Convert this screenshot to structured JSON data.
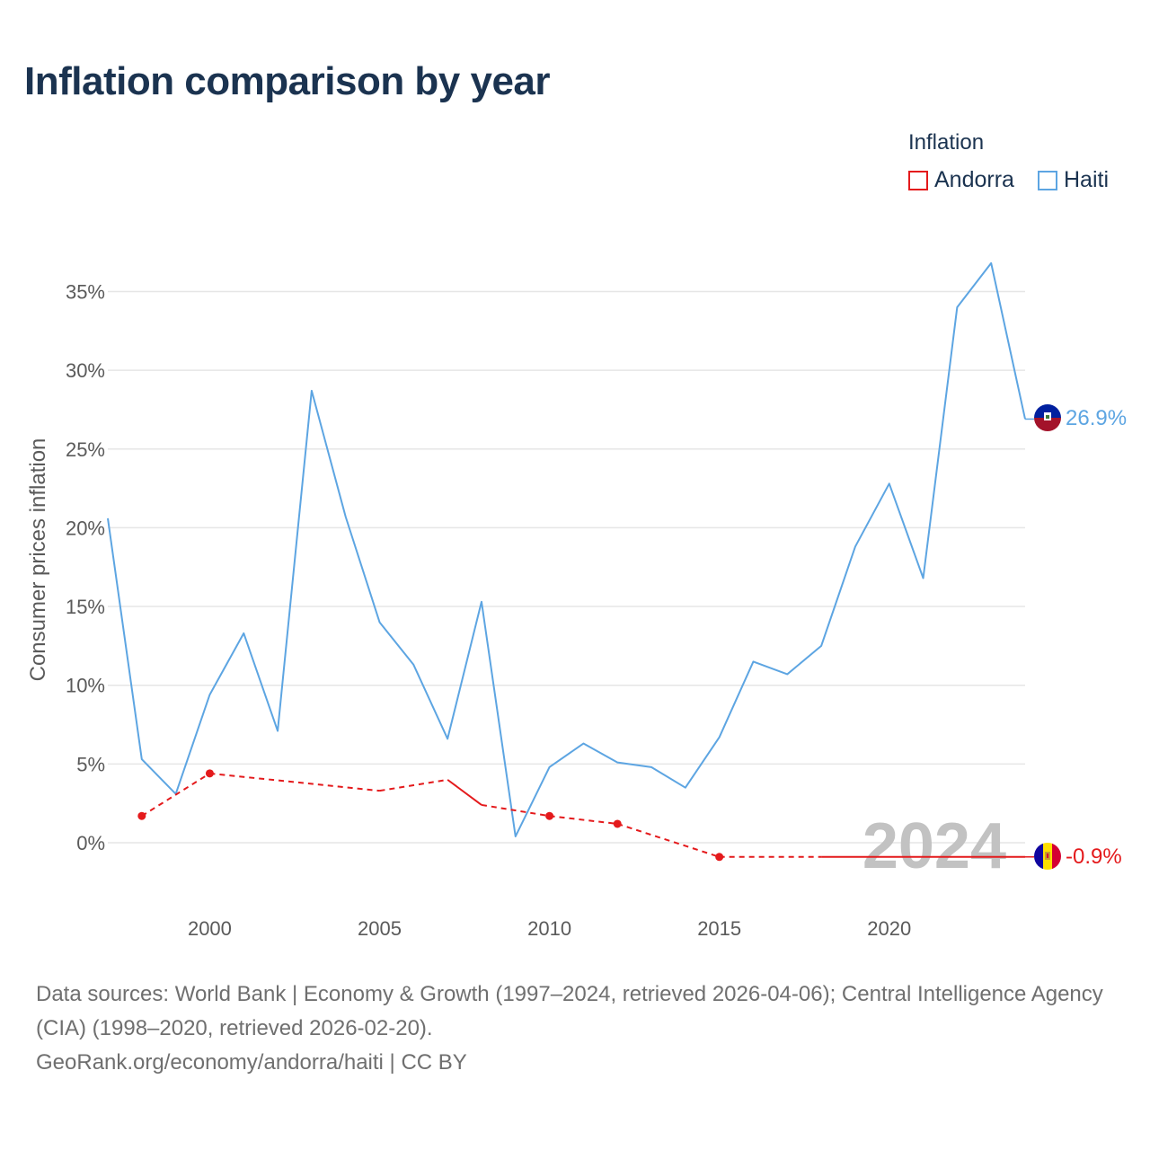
{
  "title": "Inflation comparison by year",
  "legend": {
    "title": "Inflation",
    "items": [
      {
        "label": "Andorra",
        "color": "#e41a1c"
      },
      {
        "label": "Haiti",
        "color": "#5da5e2"
      }
    ]
  },
  "footer": {
    "sources": "Data sources: World Bank | Economy & Growth (1997–2024, retrieved 2026-04-06); Central Intelligence Agency (CIA) (1998–2020, retrieved 2026-02-20).",
    "site": "GeoRank.org/economy/andorra/haiti | CC BY"
  },
  "chart_data": {
    "type": "line",
    "title": "Inflation comparison by year",
    "xlabel": "",
    "ylabel": "Consumer prices inflation",
    "xlim": [
      1997,
      2024
    ],
    "ylim": [
      -3,
      38
    ],
    "x_ticks": [
      2000,
      2005,
      2010,
      2015,
      2020
    ],
    "y_ticks": [
      0,
      5,
      10,
      15,
      20,
      25,
      30,
      35
    ],
    "y_tick_labels": [
      "0%",
      "5%",
      "10%",
      "15%",
      "20%",
      "25%",
      "30%",
      "35%"
    ],
    "grid": true,
    "year_watermark": "2024",
    "series": [
      {
        "name": "Haiti",
        "color": "#5da5e2",
        "end_label": "26.9%",
        "points": [
          [
            1997,
            20.6
          ],
          [
            1998,
            5.3
          ],
          [
            1999,
            3.1
          ],
          [
            2000,
            9.4
          ],
          [
            2001,
            13.3
          ],
          [
            2002,
            7.1
          ],
          [
            2003,
            28.7
          ],
          [
            2004,
            20.7
          ],
          [
            2005,
            14.0
          ],
          [
            2006,
            11.3
          ],
          [
            2007,
            6.6
          ],
          [
            2008,
            15.3
          ],
          [
            2009,
            0.4
          ],
          [
            2010,
            4.8
          ],
          [
            2011,
            6.3
          ],
          [
            2012,
            5.1
          ],
          [
            2013,
            4.8
          ],
          [
            2014,
            3.5
          ],
          [
            2015,
            6.7
          ],
          [
            2016,
            11.5
          ],
          [
            2017,
            10.7
          ],
          [
            2018,
            12.5
          ],
          [
            2019,
            18.8
          ],
          [
            2020,
            22.8
          ],
          [
            2021,
            16.8
          ],
          [
            2022,
            34.0
          ],
          [
            2023,
            36.8
          ],
          [
            2024,
            26.9
          ]
        ]
      },
      {
        "name": "Andorra",
        "color": "#e41a1c",
        "end_label": "-0.9%",
        "points": [
          [
            1998,
            1.7
          ],
          [
            2000,
            4.4
          ],
          [
            2005,
            3.3
          ],
          [
            2007,
            4.0
          ],
          [
            2008,
            2.4
          ],
          [
            2010,
            1.7
          ],
          [
            2012,
            1.2
          ],
          [
            2015,
            -0.9
          ],
          [
            2018,
            -0.9
          ],
          [
            2024,
            -0.9
          ]
        ],
        "solid_segments": [
          [
            2007,
            2008
          ],
          [
            2018,
            2024
          ]
        ],
        "markers": [
          1998,
          2000,
          2010,
          2012,
          2015
        ]
      }
    ]
  }
}
